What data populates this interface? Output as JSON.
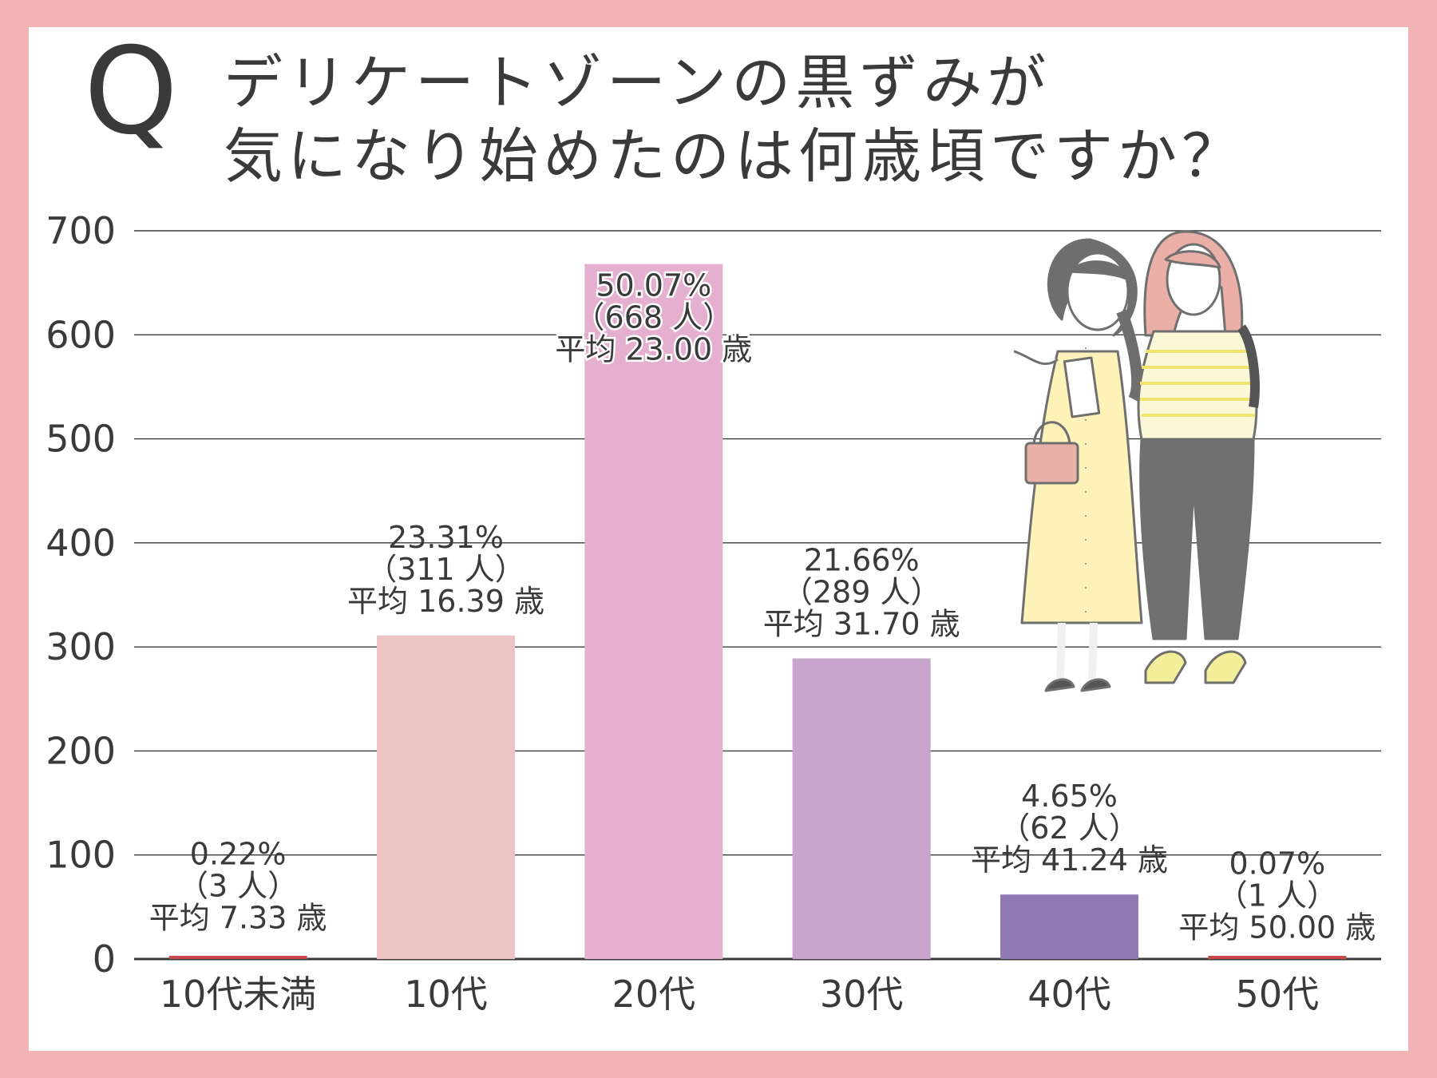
{
  "header": {
    "q_mark": "Q",
    "title_line1": "デリケートゾーンの黒ずみが",
    "title_line2": "気になり始めたのは何歳頃ですか？"
  },
  "colors": {
    "frame": "#f3b2b4",
    "grid": "#3a3a3a",
    "text": "#3a3a3a",
    "bars": [
      "#c94a4e",
      "#ecc3c3",
      "#e5b0d0",
      "#c8a5cd",
      "#9179b4",
      "#c94a4e"
    ]
  },
  "chart_data": {
    "type": "bar",
    "title": "デリケートゾーンの黒ずみが気になり始めたのは何歳頃ですか？",
    "xlabel": "",
    "ylabel": "",
    "ylim": [
      0,
      700
    ],
    "yticks": [
      "0",
      "100",
      "200",
      "300",
      "400",
      "500",
      "600",
      "700"
    ],
    "grid": true,
    "categories": [
      "10代未満",
      "10代",
      "20代",
      "30代",
      "40代",
      "50代"
    ],
    "values": [
      3,
      311,
      668,
      289,
      62,
      1
    ],
    "annotations": [
      {
        "percent": "0.22%",
        "count": "（3 人）",
        "average": "平均 7.33 歳"
      },
      {
        "percent": "23.31%",
        "count": "（311 人）",
        "average": "平均 16.39 歳"
      },
      {
        "percent": "50.07%",
        "count": "（668 人）",
        "average": "平均 23.00 歳"
      },
      {
        "percent": "21.66%",
        "count": "（289 人）",
        "average": "平均 31.70 歳"
      },
      {
        "percent": "4.65%",
        "count": "（62 人）",
        "average": "平均 41.24 歳"
      },
      {
        "percent": "0.07%",
        "count": "（1 人）",
        "average": "平均 50.00 歳"
      }
    ]
  },
  "illustration": {
    "icon": "two-women-illustration-icon"
  }
}
